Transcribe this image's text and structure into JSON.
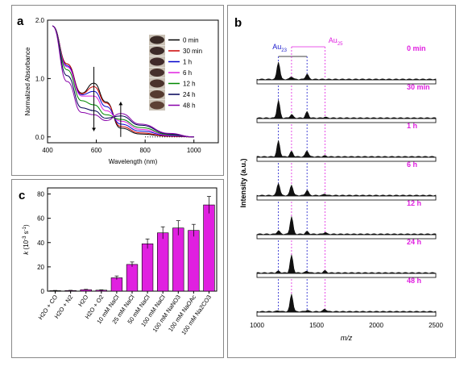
{
  "panels": {
    "a": {
      "letter": "a"
    },
    "b": {
      "letter": "b"
    },
    "c": {
      "letter": "c"
    }
  },
  "colors": {
    "magenta": "#e020e0",
    "blue_dash": "#1a1acc",
    "series": [
      "#000000",
      "#cc0000",
      "#0000cc",
      "#e020e0",
      "#008800",
      "#000055",
      "#8800aa"
    ]
  },
  "chart_data": [
    {
      "panel": "a",
      "type": "line",
      "xlabel": "Wavelength (nm)",
      "ylabel": "Normalized Absorbance",
      "xlim": [
        400,
        1100
      ],
      "ylim": [
        -0.1,
        2.0
      ],
      "xticks": [
        "400",
        "600",
        "800",
        "1000"
      ],
      "yticks": [
        "0.0",
        "1.0",
        "2.0"
      ],
      "legend_position": "top-right",
      "inset": "vial photographs",
      "series": [
        {
          "name": "0 min",
          "points": [
            [
              420,
              1.9
            ],
            [
              480,
              1.25
            ],
            [
              540,
              0.75
            ],
            [
              590,
              0.92
            ],
            [
              640,
              0.6
            ],
            [
              700,
              0.15
            ],
            [
              780,
              0.05
            ],
            [
              900,
              0.01
            ],
            [
              1000,
              0.0
            ]
          ]
        },
        {
          "name": "30 min",
          "points": [
            [
              420,
              1.9
            ],
            [
              480,
              1.25
            ],
            [
              540,
              0.74
            ],
            [
              590,
              0.86
            ],
            [
              640,
              0.58
            ],
            [
              700,
              0.18
            ],
            [
              780,
              0.07
            ],
            [
              900,
              0.01
            ],
            [
              1000,
              0.0
            ]
          ]
        },
        {
          "name": "1 h",
          "points": [
            [
              420,
              1.9
            ],
            [
              480,
              1.22
            ],
            [
              540,
              0.72
            ],
            [
              590,
              0.78
            ],
            [
              640,
              0.52
            ],
            [
              700,
              0.22
            ],
            [
              780,
              0.1
            ],
            [
              900,
              0.02
            ],
            [
              1000,
              0.0
            ]
          ]
        },
        {
          "name": "6 h",
          "points": [
            [
              420,
              1.9
            ],
            [
              480,
              1.2
            ],
            [
              540,
              0.7
            ],
            [
              590,
              0.7
            ],
            [
              640,
              0.45
            ],
            [
              700,
              0.27
            ],
            [
              780,
              0.13
            ],
            [
              900,
              0.03
            ],
            [
              1000,
              0.0
            ]
          ]
        },
        {
          "name": "12 h",
          "points": [
            [
              420,
              1.9
            ],
            [
              480,
              1.15
            ],
            [
              540,
              0.62
            ],
            [
              590,
              0.55
            ],
            [
              640,
              0.38
            ],
            [
              700,
              0.3
            ],
            [
              780,
              0.16
            ],
            [
              900,
              0.04
            ],
            [
              1000,
              0.0
            ]
          ]
        },
        {
          "name": "24 h",
          "points": [
            [
              420,
              1.9
            ],
            [
              480,
              1.05
            ],
            [
              540,
              0.5
            ],
            [
              590,
              0.45
            ],
            [
              640,
              0.32
            ],
            [
              700,
              0.36
            ],
            [
              780,
              0.2
            ],
            [
              900,
              0.05
            ],
            [
              1000,
              0.0
            ]
          ]
        },
        {
          "name": "48 h",
          "points": [
            [
              420,
              1.9
            ],
            [
              480,
              0.95
            ],
            [
              540,
              0.42
            ],
            [
              590,
              0.38
            ],
            [
              640,
              0.28
            ],
            [
              700,
              0.4
            ],
            [
              780,
              0.22
            ],
            [
              900,
              0.06
            ],
            [
              1000,
              0.0
            ]
          ]
        }
      ]
    },
    {
      "panel": "b",
      "type": "line",
      "xlabel": "m/z",
      "ylabel": "Intensity (a.u.)",
      "xlim": [
        1000,
        2500
      ],
      "xticks": [
        "1000",
        "1500",
        "2000",
        "2500"
      ],
      "reference_labels": [
        {
          "label": "Au",
          "sub": "23",
          "color": "blue"
        },
        {
          "label": "Au",
          "sub": "25",
          "color": "magenta"
        }
      ],
      "blue_dashed_lines": [
        1180,
        1420
      ],
      "magenta_dashed_lines": [
        1290,
        1570
      ],
      "traces": [
        {
          "label": "0 min",
          "peaks": [
            [
              1180,
              1.0
            ],
            [
              1290,
              0.15
            ],
            [
              1420,
              0.3
            ]
          ]
        },
        {
          "label": "30 min",
          "peaks": [
            [
              1180,
              1.0
            ],
            [
              1290,
              0.2
            ],
            [
              1420,
              0.35
            ],
            [
              1570,
              0.05
            ]
          ]
        },
        {
          "label": "1 h",
          "peaks": [
            [
              1180,
              0.9
            ],
            [
              1290,
              0.3
            ],
            [
              1420,
              0.35
            ],
            [
              1570,
              0.05
            ]
          ]
        },
        {
          "label": "6 h",
          "peaks": [
            [
              1180,
              0.7
            ],
            [
              1290,
              0.6
            ],
            [
              1420,
              0.3
            ],
            [
              1570,
              0.08
            ]
          ]
        },
        {
          "label": "12 h",
          "peaks": [
            [
              1180,
              0.2
            ],
            [
              1290,
              1.0
            ],
            [
              1420,
              0.15
            ],
            [
              1570,
              0.1
            ]
          ]
        },
        {
          "label": "24 h",
          "peaks": [
            [
              1180,
              0.1
            ],
            [
              1290,
              1.0
            ],
            [
              1420,
              0.1
            ],
            [
              1570,
              0.12
            ]
          ]
        },
        {
          "label": "48 h",
          "peaks": [
            [
              1180,
              0.05
            ],
            [
              1290,
              1.0
            ],
            [
              1420,
              0.08
            ],
            [
              1570,
              0.15
            ]
          ]
        }
      ]
    },
    {
      "panel": "c",
      "type": "bar",
      "ylabel_main": "k",
      "ylabel_units": "(10",
      "ylabel_exp": "-3",
      "ylabel_unit2": "s",
      "ylabel_exp2": "-1",
      "ylabel_close": ")",
      "ylim": [
        0,
        85
      ],
      "yticks": [
        "0",
        "20",
        "40",
        "60",
        "80"
      ],
      "categories": [
        "H2O + CO",
        "H2O + N2",
        "H2O",
        "H2O + O2",
        "10 mM NaCl",
        "25 mM NaCl",
        "50 mM NaCl",
        "100 mM NaCl",
        "100 mM NaNO3",
        "100 mM NaOAc",
        "100 mM Na2CO3"
      ],
      "values": [
        0.4,
        0.5,
        1.2,
        0.8,
        11,
        22,
        39,
        48,
        52,
        50,
        71
      ],
      "errors": [
        0.2,
        0.2,
        0.3,
        0.3,
        1.5,
        2,
        4,
        5,
        6,
        5,
        7
      ]
    }
  ]
}
